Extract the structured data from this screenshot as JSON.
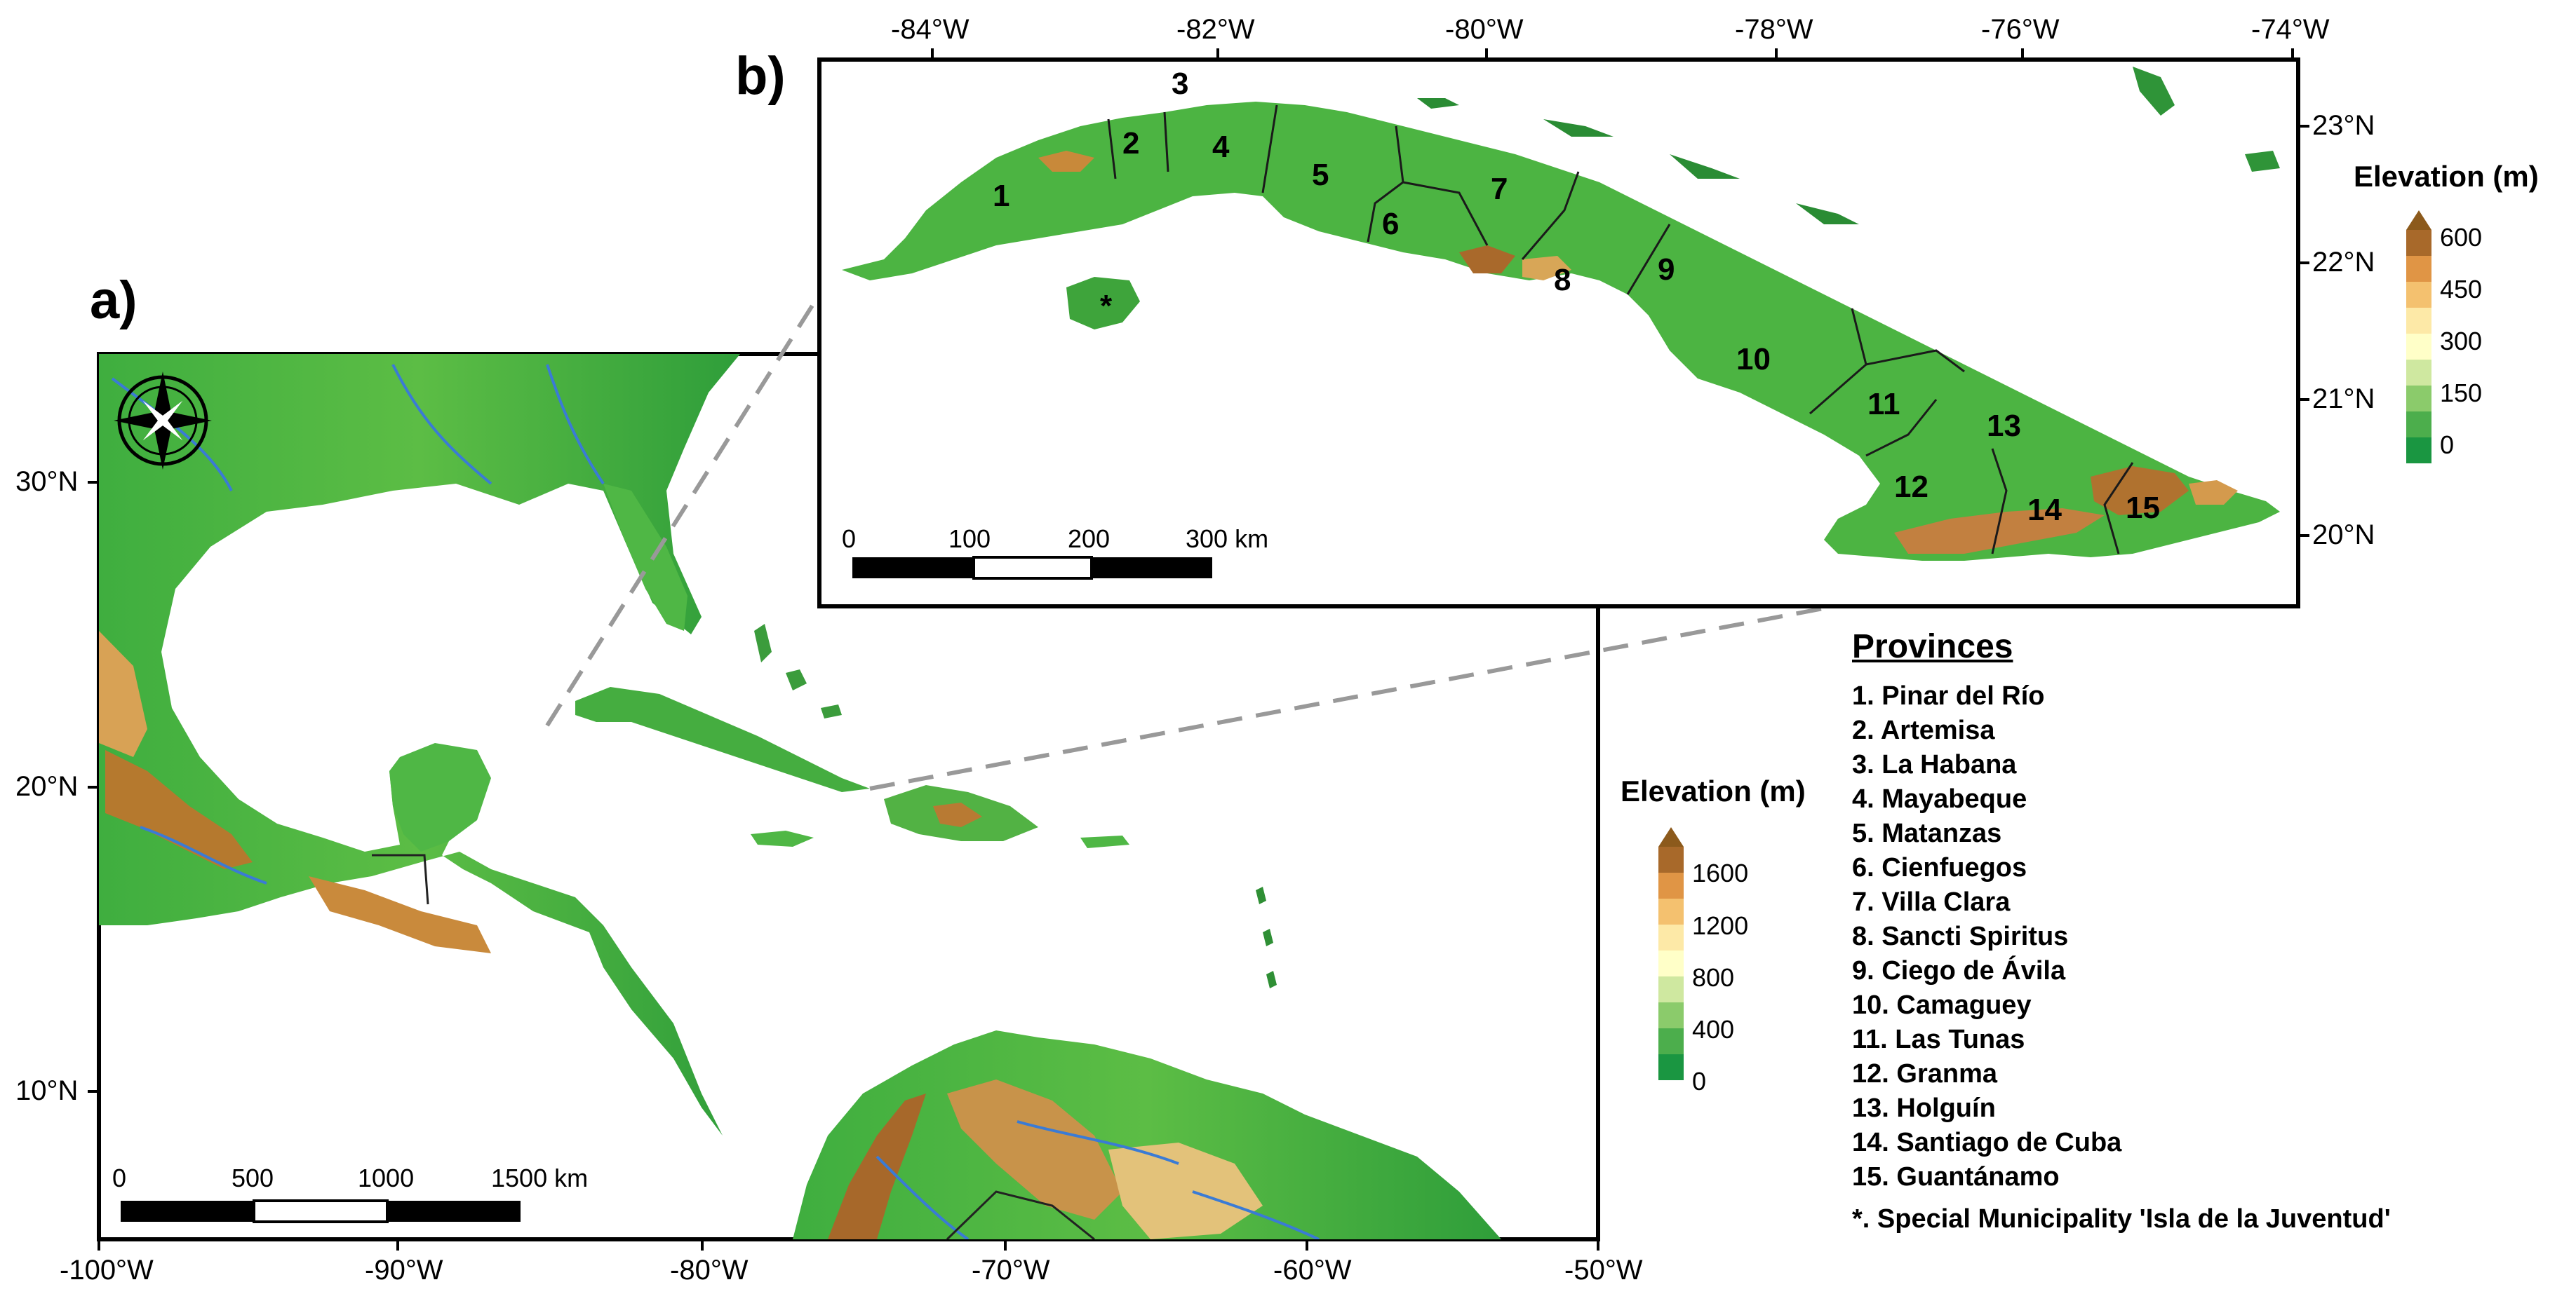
{
  "panel_a": {
    "letter": "a)",
    "x_ticks": [
      "-100°W",
      "-90°W",
      "-80°W",
      "-70°W",
      "-60°W",
      "-50°W"
    ],
    "y_ticks": [
      "30°N",
      "20°N",
      "10°N"
    ],
    "scalebar": {
      "labels": [
        "0",
        "500",
        "1000",
        "1500 km"
      ]
    },
    "legend": {
      "title": "Elevation (m)",
      "labels": [
        "1600",
        "1200",
        "800",
        "400",
        "0"
      ]
    },
    "colors": {
      "low": "#1a9641",
      "mid": "#a6d96a",
      "pale": "#ffffbf",
      "high": "#d6933a",
      "top": "#8c5a1c",
      "river": "#3a7bd5"
    }
  },
  "panel_b": {
    "letter": "b)",
    "x_ticks": [
      "-84°W",
      "-82°W",
      "-80°W",
      "-78°W",
      "-76°W",
      "-74°W"
    ],
    "y_ticks": [
      "23°N",
      "22°N",
      "21°N",
      "20°N"
    ],
    "scalebar": {
      "labels": [
        "0",
        "100",
        "200",
        "300 km"
      ]
    },
    "legend": {
      "title": "Elevation (m)",
      "labels": [
        "600",
        "450",
        "300",
        "150",
        "0"
      ]
    },
    "province_numbers": [
      "1",
      "2",
      "3",
      "4",
      "5",
      "6",
      "7",
      "8",
      "9",
      "10",
      "11",
      "12",
      "13",
      "14",
      "15",
      "*"
    ]
  },
  "provinces": {
    "title": "Provinces",
    "items": [
      "1. Pinar del Río",
      "2. Artemisa",
      "3. La Habana",
      "4. Mayabeque",
      "5. Matanzas",
      "6. Cienfuegos",
      "7. Villa Clara",
      "8. Sancti Spiritus",
      "9. Ciego de Ávila",
      "10. Camaguey",
      "11. Las Tunas",
      "12. Granma",
      "13. Holguín",
      "14. Santiago de Cuba",
      "15. Guantánamo",
      "*. Special Municipality 'Isla de la Juventud'"
    ]
  }
}
